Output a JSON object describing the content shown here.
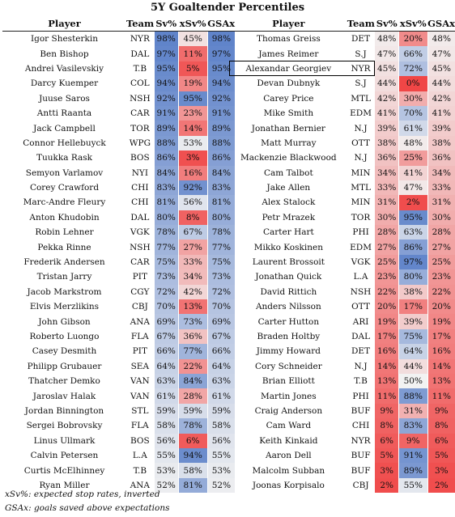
{
  "title": "5Y Goaltender Percentiles",
  "headers": {
    "player": "Player",
    "team": "Team",
    "sv": "Sv%",
    "xsv": "xSv%",
    "gsax": "GSAx"
  },
  "highlight_player": "Alexandar Georgiev",
  "colors": {
    "high": "#5a7fc8",
    "mid": "#f2f2f2",
    "low": "#f04646"
  },
  "left_rows": [
    [
      "Igor Shesterkin",
      "NYR",
      98,
      45,
      98
    ],
    [
      "Ben Bishop",
      "DAL",
      97,
      11,
      97
    ],
    [
      "Andrei Vasilevskiy",
      "T.B",
      95,
      5,
      95
    ],
    [
      "Darcy Kuemper",
      "COL",
      94,
      19,
      94
    ],
    [
      "Juuse Saros",
      "NSH",
      92,
      95,
      92
    ],
    [
      "Antti Raanta",
      "CAR",
      91,
      23,
      91
    ],
    [
      "Jack Campbell",
      "TOR",
      89,
      14,
      89
    ],
    [
      "Connor Hellebuyck",
      "WPG",
      88,
      53,
      88
    ],
    [
      "Tuukka Rask",
      "BOS",
      86,
      3,
      86
    ],
    [
      "Semyon Varlamov",
      "NYI",
      84,
      16,
      84
    ],
    [
      "Corey Crawford",
      "CHI",
      83,
      92,
      83
    ],
    [
      "Marc-Andre Fleury",
      "CHI",
      81,
      56,
      81
    ],
    [
      "Anton Khudobin",
      "DAL",
      80,
      8,
      80
    ],
    [
      "Robin Lehner",
      "VGK",
      78,
      67,
      78
    ],
    [
      "Pekka Rinne",
      "NSH",
      77,
      27,
      77
    ],
    [
      "Frederik Andersen",
      "CAR",
      75,
      33,
      75
    ],
    [
      "Tristan Jarry",
      "PIT",
      73,
      34,
      73
    ],
    [
      "Jacob Markstrom",
      "CGY",
      72,
      42,
      72
    ],
    [
      "Elvis Merzlikins",
      "CBJ",
      70,
      13,
      70
    ],
    [
      "John Gibson",
      "ANA",
      69,
      73,
      69
    ],
    [
      "Roberto Luongo",
      "FLA",
      67,
      36,
      67
    ],
    [
      "Casey Desmith",
      "PIT",
      66,
      77,
      66
    ],
    [
      "Philipp Grubauer",
      "SEA",
      64,
      22,
      64
    ],
    [
      "Thatcher Demko",
      "VAN",
      63,
      84,
      63
    ],
    [
      "Jaroslav Halak",
      "VAN",
      61,
      28,
      61
    ],
    [
      "Jordan Binnington",
      "STL",
      59,
      59,
      59
    ],
    [
      "Sergei Bobrovsky",
      "FLA",
      58,
      78,
      58
    ],
    [
      "Linus Ullmark",
      "BOS",
      56,
      6,
      56
    ],
    [
      "Calvin Petersen",
      "L.A",
      55,
      94,
      55
    ],
    [
      "Curtis McElhinney",
      "T.B",
      53,
      58,
      53
    ],
    [
      "Ryan Miller",
      "ANA",
      52,
      81,
      52
    ]
  ],
  "right_rows": [
    [
      "Thomas Greiss",
      "DET",
      48,
      20,
      48
    ],
    [
      "James Reimer",
      "S.J",
      47,
      66,
      47
    ],
    [
      "Alexandar Georgiev",
      "NYR",
      45,
      72,
      45
    ],
    [
      "Devan Dubnyk",
      "S.J",
      44,
      0,
      44
    ],
    [
      "Carey Price",
      "MTL",
      42,
      30,
      42
    ],
    [
      "Mike Smith",
      "EDM",
      41,
      70,
      41
    ],
    [
      "Jonathan Bernier",
      "N.J",
      39,
      61,
      39
    ],
    [
      "Matt Murray",
      "OTT",
      38,
      48,
      38
    ],
    [
      "Mackenzie Blackwood",
      "N.J",
      36,
      25,
      36
    ],
    [
      "Cam Talbot",
      "MIN",
      34,
      41,
      34
    ],
    [
      "Jake Allen",
      "MTL",
      33,
      47,
      33
    ],
    [
      "Alex Stalock",
      "MIN",
      31,
      2,
      31
    ],
    [
      "Petr Mrazek",
      "TOR",
      30,
      95,
      30
    ],
    [
      "Carter Hart",
      "PHI",
      28,
      63,
      28
    ],
    [
      "Mikko Koskinen",
      "EDM",
      27,
      86,
      27
    ],
    [
      "Laurent Brossoit",
      "VGK",
      25,
      97,
      25
    ],
    [
      "Jonathan Quick",
      "L.A",
      23,
      80,
      23
    ],
    [
      "David Rittich",
      "NSH",
      22,
      38,
      22
    ],
    [
      "Anders Nilsson",
      "OTT",
      20,
      17,
      20
    ],
    [
      "Carter Hutton",
      "ARI",
      19,
      39,
      19
    ],
    [
      "Braden Holtby",
      "DAL",
      17,
      75,
      17
    ],
    [
      "Jimmy Howard",
      "DET",
      16,
      64,
      16
    ],
    [
      "Cory Schneider",
      "N.J",
      14,
      44,
      14
    ],
    [
      "Brian Elliott",
      "T.B",
      13,
      50,
      13
    ],
    [
      "Martin Jones",
      "PHI",
      11,
      88,
      11
    ],
    [
      "Craig Anderson",
      "BUF",
      9,
      31,
      9
    ],
    [
      "Cam Ward",
      "CHI",
      8,
      83,
      8
    ],
    [
      "Keith Kinkaid",
      "NYR",
      6,
      9,
      6
    ],
    [
      "Aaron Dell",
      "BUF",
      5,
      91,
      5
    ],
    [
      "Malcolm Subban",
      "BUF",
      3,
      89,
      3
    ],
    [
      "Joonas Korpisalo",
      "CBJ",
      2,
      55,
      2
    ]
  ],
  "notes": {
    "xsv": "xSv%: expected stop rates, inverted",
    "gsax": "GSAx: goals saved above expectations"
  }
}
